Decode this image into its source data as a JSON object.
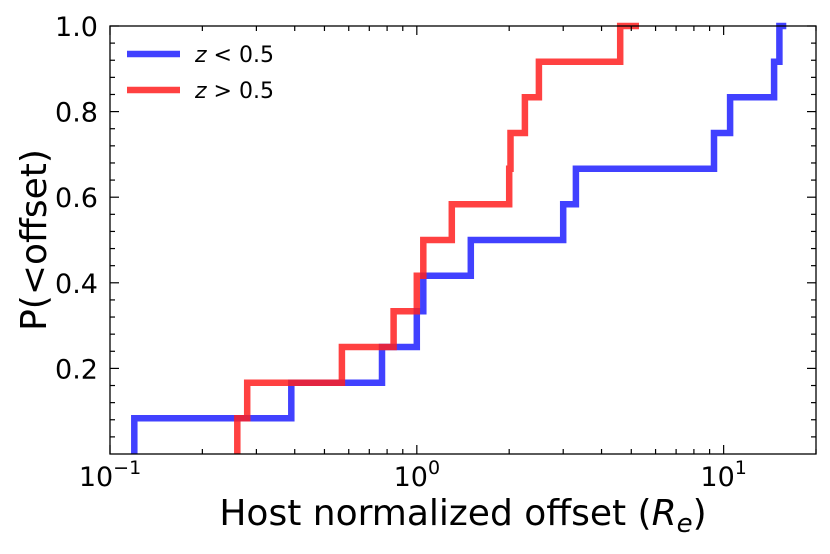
{
  "chart_data": {
    "type": "line",
    "title": "",
    "xlabel_text": "Host normalized offset (",
    "xlabel_var": "R",
    "xlabel_sub": "e",
    "xlabel_close": ")",
    "ylabel": "P(<offset)",
    "xscale": "log",
    "xlim": [
      0.1,
      20
    ],
    "ylim": [
      0.0,
      1.0
    ],
    "grid": false,
    "legend_position": "top-left",
    "x_ticks": [
      {
        "value": 0.1,
        "base": "10",
        "exp": "−1"
      },
      {
        "value": 1,
        "base": "10",
        "exp": "0"
      },
      {
        "value": 10,
        "base": "10",
        "exp": "1"
      }
    ],
    "y_ticks": [
      {
        "value": 0.2,
        "label": "0.2"
      },
      {
        "value": 0.4,
        "label": "0.4"
      },
      {
        "value": 0.6,
        "label": "0.6"
      },
      {
        "value": 0.8,
        "label": "0.8"
      },
      {
        "value": 1.0,
        "label": "1.0"
      }
    ],
    "series": [
      {
        "name": "z < 0.5",
        "legend_var": "z",
        "legend_rest": " < 0.5",
        "color": "#2020ff",
        "x": [
          0.12,
          0.39,
          0.77,
          1.0,
          1.05,
          1.5,
          3.0,
          3.3,
          9.3,
          10.5,
          14.6,
          15.2,
          16.0
        ],
        "y": [
          0.0833,
          0.1667,
          0.25,
          0.3333,
          0.4167,
          0.5,
          0.5833,
          0.6667,
          0.75,
          0.8333,
          0.9167,
          1.0,
          1.0
        ]
      },
      {
        "name": "z > 0.5",
        "legend_var": "z",
        "legend_rest": " > 0.5",
        "color": "#ff2020",
        "x": [
          0.26,
          0.28,
          0.57,
          0.84,
          1.0,
          1.05,
          1.3,
          2.0,
          2.02,
          2.25,
          2.5,
          4.6,
          5.3
        ],
        "y": [
          0.0833,
          0.1667,
          0.25,
          0.3333,
          0.4167,
          0.5,
          0.5833,
          0.6667,
          0.75,
          0.8333,
          0.9167,
          1.0,
          1.0
        ]
      }
    ]
  }
}
